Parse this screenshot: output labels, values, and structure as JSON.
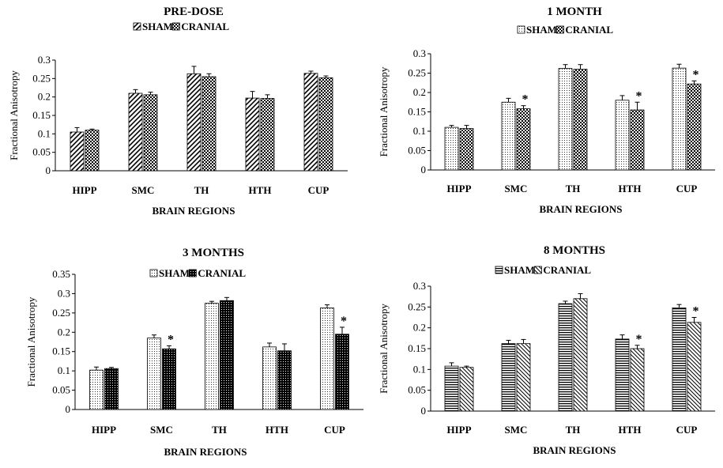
{
  "chart_data": [
    {
      "type": "bar",
      "title": "PRE-DOSE",
      "xlabel": "BRAIN REGIONS",
      "ylabel": "Fractional Anisotropy",
      "ylim": [
        0,
        0.3
      ],
      "yticks": [
        "0",
        "0.05",
        "0.1",
        "0.15",
        "0.2",
        "0.25",
        "0.3"
      ],
      "categories": [
        "HIPP",
        "SMC",
        "TH",
        "HTH",
        "CUP"
      ],
      "series": [
        {
          "name": "SHAM",
          "pattern": "diag-right",
          "values": [
            0.105,
            0.21,
            0.263,
            0.197,
            0.264
          ],
          "errors": [
            0.012,
            0.01,
            0.02,
            0.018,
            0.006
          ]
        },
        {
          "name": "CRANIAL",
          "pattern": "checker",
          "values": [
            0.11,
            0.206,
            0.255,
            0.196,
            0.252
          ],
          "errors": [
            0.003,
            0.007,
            0.008,
            0.01,
            0.005
          ]
        }
      ],
      "significant": []
    },
    {
      "type": "bar",
      "title": "1 MONTH",
      "xlabel": "BRAIN REGIONS",
      "ylabel": "Fractional Anisotropy",
      "ylim": [
        0,
        0.3
      ],
      "yticks": [
        "0",
        "0.05",
        "0.1",
        "0.15",
        "0.2",
        "0.25",
        "0.3"
      ],
      "categories": [
        "HIPP",
        "SMC",
        "TH",
        "HTH",
        "CUP"
      ],
      "series": [
        {
          "name": "SHAM",
          "pattern": "fine-dots",
          "values": [
            0.11,
            0.175,
            0.262,
            0.18,
            0.263
          ],
          "errors": [
            0.005,
            0.01,
            0.01,
            0.012,
            0.01
          ]
        },
        {
          "name": "CRANIAL",
          "pattern": "checker",
          "values": [
            0.107,
            0.158,
            0.26,
            0.155,
            0.222
          ],
          "errors": [
            0.008,
            0.008,
            0.012,
            0.02,
            0.008
          ]
        }
      ],
      "significant": [
        {
          "category": "SMC",
          "label": "*"
        },
        {
          "category": "HTH",
          "label": "*"
        },
        {
          "category": "CUP",
          "label": "*"
        }
      ]
    },
    {
      "type": "bar",
      "title": "3 MONTHS",
      "xlabel": "BRAIN REGIONS",
      "ylabel": "Fractional Anisotropy",
      "ylim": [
        0,
        0.35
      ],
      "yticks": [
        "0",
        "0.05",
        "0.1",
        "0.15",
        "0.2",
        "0.25",
        "0.3",
        "0.35"
      ],
      "categories": [
        "HIPP",
        "SMC",
        "TH",
        "HTH",
        "CUP"
      ],
      "series": [
        {
          "name": "SHAM",
          "pattern": "fine-dots",
          "values": [
            0.102,
            0.185,
            0.275,
            0.162,
            0.263
          ],
          "errors": [
            0.008,
            0.008,
            0.005,
            0.01,
            0.008
          ]
        },
        {
          "name": "CRANIAL",
          "pattern": "dark-dots",
          "values": [
            0.106,
            0.157,
            0.282,
            0.152,
            0.195
          ],
          "errors": [
            0.003,
            0.008,
            0.008,
            0.018,
            0.018
          ]
        }
      ],
      "significant": [
        {
          "category": "SMC",
          "label": "*"
        },
        {
          "category": "CUP",
          "label": "*"
        }
      ]
    },
    {
      "type": "bar",
      "title": "8 MONTHS",
      "xlabel": "BRAIN REGIONS",
      "ylabel": "Fractional Anisotropy",
      "ylim": [
        0,
        0.3
      ],
      "yticks": [
        "0",
        "0.05",
        "0.1",
        "0.15",
        "0.2",
        "0.25",
        "0.3"
      ],
      "categories": [
        "HIPP",
        "SMC",
        "TH",
        "HTH",
        "CUP"
      ],
      "series": [
        {
          "name": "SHAM",
          "pattern": "horizontal",
          "values": [
            0.108,
            0.162,
            0.258,
            0.173,
            0.248
          ],
          "errors": [
            0.008,
            0.008,
            0.006,
            0.01,
            0.008
          ]
        },
        {
          "name": "CRANIAL",
          "pattern": "diag-left",
          "values": [
            0.105,
            0.162,
            0.27,
            0.15,
            0.213
          ],
          "errors": [
            0.003,
            0.01,
            0.012,
            0.008,
            0.012
          ]
        }
      ],
      "significant": [
        {
          "category": "HTH",
          "label": "*"
        },
        {
          "category": "CUP",
          "label": "*"
        }
      ]
    }
  ]
}
